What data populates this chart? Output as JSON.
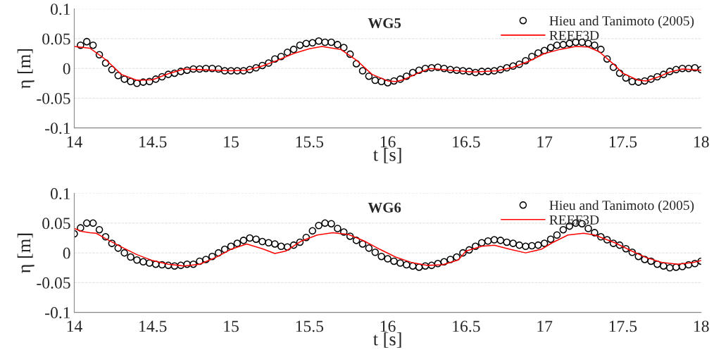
{
  "chart_data": [
    {
      "type": "line",
      "title": "WG5",
      "xlabel": "t [s]",
      "ylabel": "η [m]",
      "xlim": [
        14,
        18
      ],
      "ylim": [
        -0.1,
        0.1
      ],
      "xticks": [
        14,
        14.5,
        15,
        15.5,
        16,
        16.5,
        17,
        17.5,
        18
      ],
      "yticks": [
        -0.1,
        -0.05,
        0,
        0.05,
        0.1
      ],
      "grid": "y",
      "legend": "top right",
      "series": [
        {
          "name": "Hieu and Tanimoto (2005)",
          "type": "scatter",
          "marker": "circle",
          "color": "#000000",
          "x": [
            14.04,
            14.08,
            14.12,
            14.16,
            14.2,
            14.24,
            14.28,
            14.32,
            14.36,
            14.4,
            14.44,
            14.48,
            14.52,
            14.56,
            14.6,
            14.64,
            14.68,
            14.72,
            14.76,
            14.8,
            14.84,
            14.88,
            14.92,
            14.96,
            15.0,
            15.04,
            15.08,
            15.12,
            15.16,
            15.2,
            15.24,
            15.28,
            15.32,
            15.36,
            15.4,
            15.44,
            15.48,
            15.52,
            15.56,
            15.6,
            15.64,
            15.68,
            15.72,
            15.76,
            15.8,
            15.84,
            15.88,
            15.92,
            15.96,
            16.0,
            16.04,
            16.08,
            16.12,
            16.16,
            16.2,
            16.24,
            16.28,
            16.32,
            16.36,
            16.4,
            16.44,
            16.48,
            16.52,
            16.56,
            16.6,
            16.64,
            16.68,
            16.72,
            16.76,
            16.8,
            16.84,
            16.88,
            16.92,
            16.96,
            17.0,
            17.04,
            17.08,
            17.12,
            17.16,
            17.2,
            17.24,
            17.28,
            17.32,
            17.36,
            17.4,
            17.44,
            17.48,
            17.52,
            17.56,
            17.6,
            17.64,
            17.68,
            17.72,
            17.76,
            17.8,
            17.84,
            17.88,
            17.92,
            17.96,
            18.0
          ],
          "values": [
            0.039,
            0.045,
            0.039,
            0.023,
            0.009,
            -0.002,
            -0.012,
            -0.018,
            -0.022,
            -0.025,
            -0.023,
            -0.022,
            -0.018,
            -0.014,
            -0.01,
            -0.008,
            -0.005,
            -0.003,
            -0.001,
            -0.001,
            0,
            0,
            -0.001,
            -0.004,
            -0.004,
            -0.004,
            -0.004,
            -0.002,
            0.001,
            0.005,
            0.009,
            0.016,
            0.02,
            0.027,
            0.032,
            0.039,
            0.042,
            0.043,
            0.046,
            0.044,
            0.044,
            0.04,
            0.035,
            0.024,
            0.008,
            -0.004,
            -0.013,
            -0.02,
            -0.022,
            -0.024,
            -0.021,
            -0.018,
            -0.013,
            -0.007,
            -0.003,
            0,
            0.001,
            0.002,
            0,
            -0.002,
            -0.003,
            -0.004,
            -0.005,
            -0.007,
            -0.005,
            -0.005,
            -0.004,
            -0.002,
            0.001,
            0.004,
            0.007,
            0.013,
            0.02,
            0.026,
            0.03,
            0.035,
            0.039,
            0.04,
            0.042,
            0.044,
            0.044,
            0.042,
            0.039,
            0.032,
            0.016,
            0.002,
            -0.008,
            -0.016,
            -0.022,
            -0.023,
            -0.021,
            -0.018,
            -0.014,
            -0.01,
            -0.005,
            -0.002,
            0,
            0,
            0.001,
            -0.002
          ]
        },
        {
          "name": "REEF3D",
          "color": "#ff0000",
          "x": [
            14.0,
            14.1,
            14.2,
            14.3,
            14.4,
            14.5,
            14.6,
            14.7,
            14.8,
            14.9,
            15.0,
            15.1,
            15.2,
            15.3,
            15.4,
            15.5,
            15.58,
            15.7,
            15.8,
            15.9,
            16.0,
            16.05,
            16.1,
            16.2,
            16.27,
            16.4,
            16.55,
            16.7,
            16.8,
            16.9,
            17.0,
            17.1,
            17.2,
            17.28,
            17.35,
            17.45,
            17.5,
            17.6,
            17.65,
            17.72,
            17.8,
            17.88,
            18.0
          ],
          "values": [
            0.037,
            0.034,
            0.015,
            -0.01,
            -0.02,
            -0.019,
            -0.009,
            -0.001,
            -0.002,
            -0.003,
            -0.004,
            -0.003,
            0.004,
            0.014,
            0.025,
            0.033,
            0.037,
            0.032,
            0.014,
            -0.01,
            -0.021,
            -0.022,
            -0.019,
            -0.007,
            0,
            -0.003,
            -0.006,
            -0.004,
            0.002,
            0.012,
            0.025,
            0.032,
            0.037,
            0.036,
            0.028,
            0.005,
            -0.008,
            -0.02,
            -0.021,
            -0.015,
            -0.006,
            -0.001,
            -0.003
          ]
        }
      ]
    },
    {
      "type": "line",
      "title": "WG6",
      "xlabel": "t [s]",
      "ylabel": "η [m]",
      "xlim": [
        14,
        18
      ],
      "ylim": [
        -0.1,
        0.1
      ],
      "xticks": [
        14,
        14.5,
        15,
        15.5,
        16,
        16.5,
        17,
        17.5,
        18
      ],
      "yticks": [
        -0.1,
        -0.05,
        0,
        0.05,
        0.1
      ],
      "grid": "y",
      "legend": "top right",
      "series": [
        {
          "name": "Hieu and Tanimoto (2005)",
          "type": "scatter",
          "marker": "circle",
          "color": "#000000",
          "x": [
            14.0,
            14.04,
            14.08,
            14.12,
            14.16,
            14.2,
            14.24,
            14.28,
            14.32,
            14.36,
            14.4,
            14.44,
            14.48,
            14.52,
            14.56,
            14.6,
            14.64,
            14.68,
            14.72,
            14.76,
            14.8,
            14.84,
            14.88,
            14.92,
            14.96,
            15.0,
            15.04,
            15.08,
            15.12,
            15.16,
            15.2,
            15.24,
            15.28,
            15.32,
            15.36,
            15.4,
            15.44,
            15.48,
            15.52,
            15.56,
            15.6,
            15.64,
            15.68,
            15.72,
            15.76,
            15.8,
            15.84,
            15.88,
            15.92,
            15.96,
            16.0,
            16.04,
            16.08,
            16.12,
            16.16,
            16.2,
            16.24,
            16.28,
            16.32,
            16.36,
            16.4,
            16.44,
            16.48,
            16.52,
            16.56,
            16.6,
            16.64,
            16.68,
            16.72,
            16.76,
            16.8,
            16.84,
            16.88,
            16.92,
            16.96,
            17.0,
            17.04,
            17.08,
            17.12,
            17.16,
            17.2,
            17.24,
            17.28,
            17.32,
            17.36,
            17.4,
            17.44,
            17.48,
            17.52,
            17.56,
            17.6,
            17.64,
            17.68,
            17.72,
            17.76,
            17.8,
            17.84,
            17.88,
            17.92,
            17.96,
            18.0
          ],
          "values": [
            0.032,
            0.042,
            0.05,
            0.05,
            0.039,
            0.027,
            0.016,
            0.008,
            0,
            -0.007,
            -0.012,
            -0.015,
            -0.017,
            -0.019,
            -0.02,
            -0.021,
            -0.022,
            -0.021,
            -0.019,
            -0.019,
            -0.014,
            -0.011,
            -0.006,
            0,
            0.006,
            0.011,
            0.016,
            0.021,
            0.025,
            0.023,
            0.019,
            0.017,
            0.015,
            0.011,
            0.01,
            0.013,
            0.018,
            0.026,
            0.037,
            0.046,
            0.05,
            0.049,
            0.041,
            0.035,
            0.028,
            0.021,
            0.015,
            0.008,
            0.001,
            -0.006,
            -0.01,
            -0.014,
            -0.017,
            -0.02,
            -0.022,
            -0.024,
            -0.022,
            -0.021,
            -0.018,
            -0.015,
            -0.011,
            -0.007,
            0,
            0.005,
            0.011,
            0.017,
            0.02,
            0.022,
            0.021,
            0.018,
            0.016,
            0.013,
            0.011,
            0.012,
            0.013,
            0.016,
            0.023,
            0.03,
            0.039,
            0.045,
            0.05,
            0.049,
            0.041,
            0.034,
            0.027,
            0.022,
            0.016,
            0.013,
            0.007,
            0.001,
            -0.006,
            -0.011,
            -0.014,
            -0.019,
            -0.022,
            -0.025,
            -0.024,
            -0.023,
            -0.02,
            -0.018,
            -0.014
          ]
        },
        {
          "name": "REEF3D",
          "color": "#ff0000",
          "x": [
            14.0,
            14.05,
            14.1,
            14.14,
            14.2,
            14.3,
            14.4,
            14.5,
            14.6,
            14.7,
            14.8,
            14.9,
            15.0,
            15.1,
            15.2,
            15.28,
            15.35,
            15.45,
            15.55,
            15.65,
            15.75,
            15.85,
            15.95,
            16.05,
            16.15,
            16.25,
            16.35,
            16.45,
            16.5,
            16.6,
            16.68,
            16.78,
            16.88,
            16.98,
            17.05,
            17.15,
            17.25,
            17.32,
            17.45,
            17.55,
            17.65,
            17.75,
            17.85,
            17.95,
            18.0
          ],
          "values": [
            0.041,
            0.036,
            0.034,
            0.033,
            0.024,
            0.01,
            -0.003,
            -0.013,
            -0.019,
            -0.022,
            -0.019,
            -0.008,
            0.006,
            0.015,
            0.007,
            -0.001,
            0.003,
            0.02,
            0.03,
            0.034,
            0.031,
            0.02,
            0.006,
            -0.007,
            -0.016,
            -0.021,
            -0.02,
            -0.012,
            0.003,
            0.011,
            0.013,
            0.006,
            0,
            0.006,
            0.017,
            0.03,
            0.033,
            0.03,
            0.017,
            0.004,
            -0.008,
            -0.016,
            -0.019,
            -0.016,
            -0.013
          ]
        }
      ]
    }
  ]
}
